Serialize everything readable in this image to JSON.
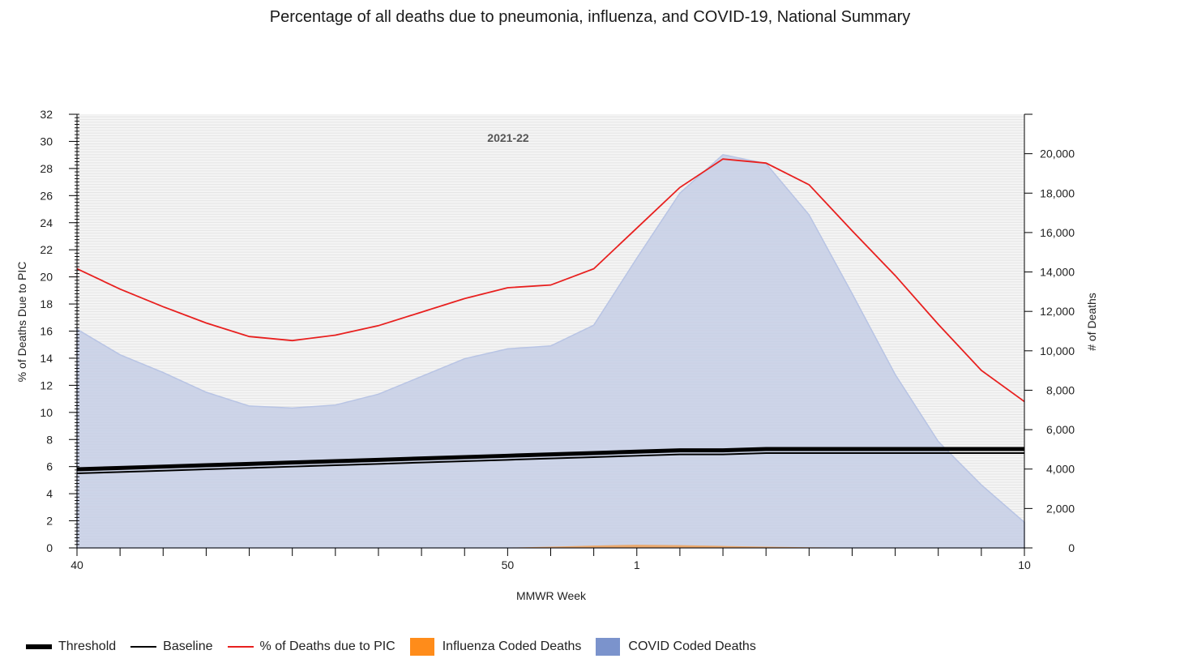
{
  "title": "Percentage of all deaths due to pneumonia, influenza, and COVID-19, National Summary",
  "colors": {
    "threshold": "#000000",
    "baseline": "#000000",
    "pic": "#e8201f",
    "influenza": "#ff8c1a",
    "covid": "#7b93cc",
    "covid_fill": "#c6cee5",
    "plot_bg": "#f3f3f3"
  },
  "legend": {
    "threshold": "Threshold",
    "baseline": "Baseline",
    "pic": "% of Deaths due to PIC",
    "influenza": "Influenza Coded Deaths",
    "covid": "COVID Coded Deaths"
  },
  "chart_data": {
    "type": "line",
    "season_label": "2021-22",
    "xlabel": "MMWR Week",
    "ylabel_left": "% of Deaths Due to PIC",
    "ylabel_right": "# of Deaths",
    "x_weeks": [
      40,
      41,
      42,
      43,
      44,
      45,
      46,
      47,
      48,
      49,
      50,
      51,
      52,
      1,
      2,
      3,
      4,
      5,
      6,
      7,
      8,
      9,
      10
    ],
    "x_tick_labels": [
      {
        "week_index": 0,
        "label": "40"
      },
      {
        "week_index": 10,
        "label": "50"
      },
      {
        "week_index": 13,
        "label": "1"
      },
      {
        "week_index": 22,
        "label": "10"
      }
    ],
    "ylim_left": [
      0,
      32
    ],
    "yticks_left": [
      0,
      2,
      4,
      6,
      8,
      10,
      12,
      14,
      16,
      18,
      20,
      22,
      24,
      26,
      28,
      30,
      32
    ],
    "ylim_right": [
      0,
      22000
    ],
    "yticks_right": [
      0,
      2000,
      4000,
      6000,
      8000,
      10000,
      12000,
      14000,
      16000,
      18000,
      20000
    ],
    "yticks_right_labels": [
      "0",
      "2,000",
      "4,000",
      "6,000",
      "8,000",
      "10,000",
      "12,000",
      "14,000",
      "16,000",
      "18,000",
      "20,000"
    ],
    "legend_position": "bottom",
    "series": [
      {
        "name": "Threshold",
        "axis": "left",
        "values": [
          5.8,
          5.9,
          6.0,
          6.1,
          6.2,
          6.3,
          6.4,
          6.5,
          6.6,
          6.7,
          6.8,
          6.9,
          7.0,
          7.1,
          7.2,
          7.2,
          7.3,
          7.3,
          7.3,
          7.3,
          7.3,
          7.3,
          7.3
        ]
      },
      {
        "name": "Baseline",
        "axis": "left",
        "values": [
          5.5,
          5.6,
          5.7,
          5.8,
          5.9,
          6.0,
          6.1,
          6.2,
          6.3,
          6.4,
          6.5,
          6.6,
          6.7,
          6.8,
          6.9,
          6.9,
          7.0,
          7.0,
          7.0,
          7.0,
          7.0,
          7.0,
          7.0
        ]
      },
      {
        "name": "% of Deaths due to PIC",
        "axis": "left",
        "values": [
          20.6,
          19.1,
          17.8,
          16.6,
          15.6,
          15.3,
          15.7,
          16.4,
          17.4,
          18.4,
          19.2,
          19.4,
          20.6,
          23.6,
          26.6,
          28.7,
          28.4,
          26.8,
          23.4,
          20.1,
          16.5,
          13.1,
          10.8
        ]
      },
      {
        "name": "Influenza Coded Deaths",
        "axis": "right",
        "values": [
          0,
          0,
          0,
          0,
          0,
          0,
          0,
          0,
          0,
          5,
          15,
          60,
          120,
          160,
          140,
          100,
          60,
          30,
          15,
          10,
          5,
          0,
          0
        ]
      },
      {
        "name": "COVID Coded Deaths",
        "axis": "right",
        "values": [
          11100,
          9800,
          8900,
          7900,
          7200,
          7100,
          7250,
          7800,
          8700,
          9600,
          10100,
          10250,
          11300,
          14700,
          18000,
          19950,
          19500,
          16900,
          12900,
          8800,
          5400,
          3200,
          1300
        ]
      }
    ]
  }
}
